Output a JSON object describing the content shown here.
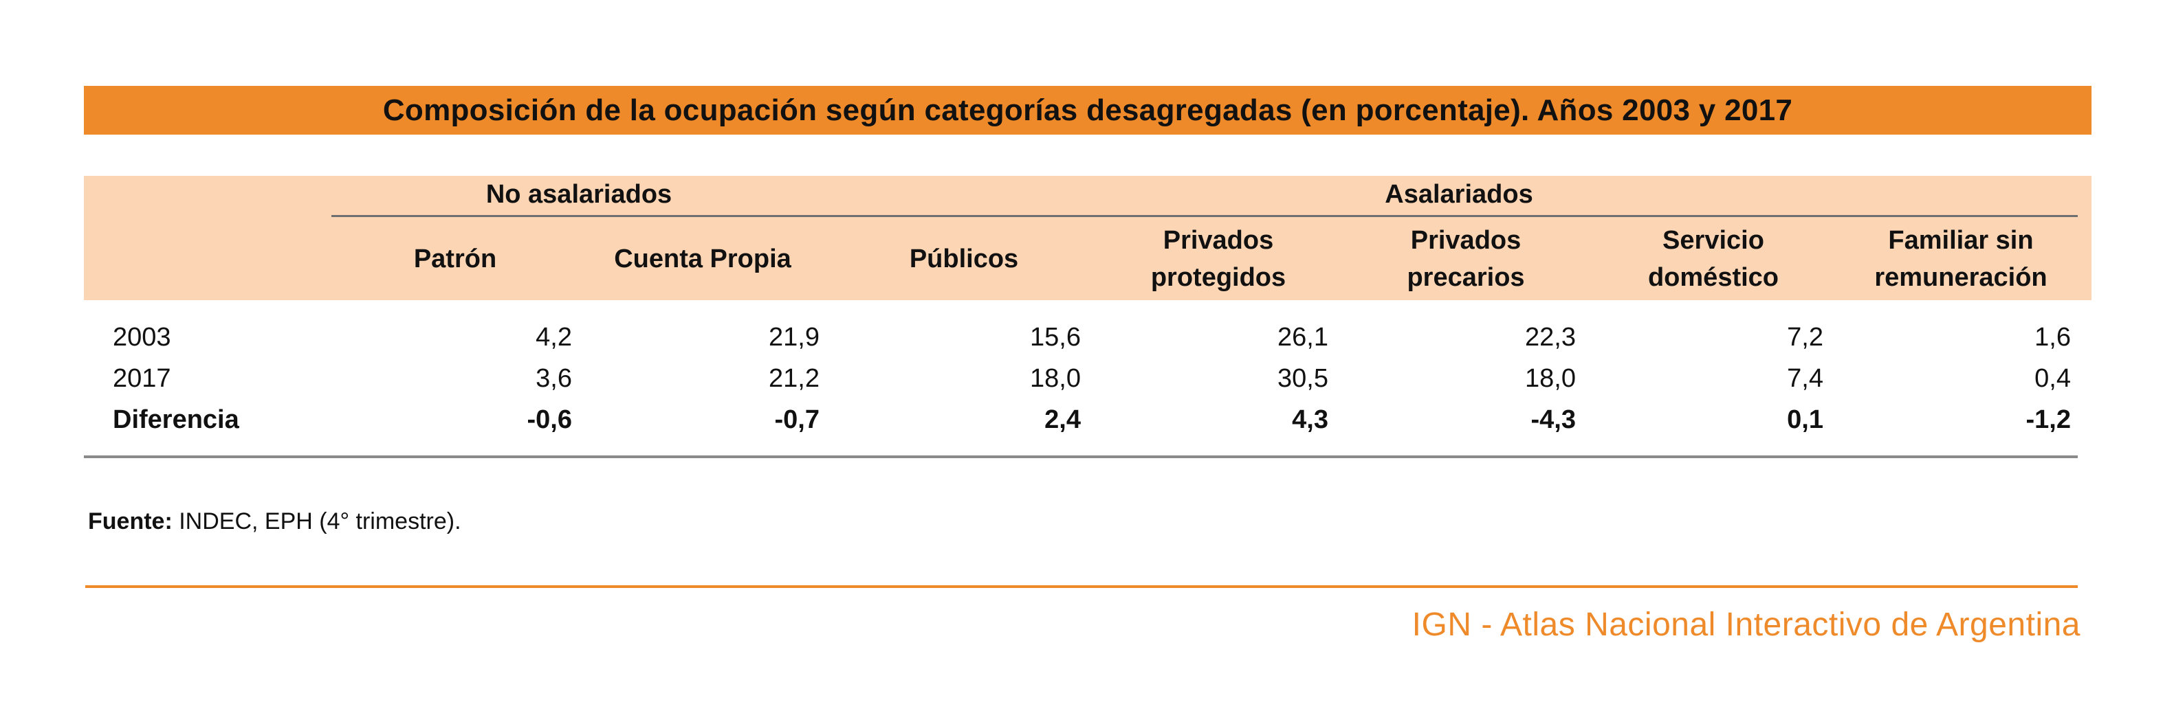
{
  "title": "Composición de la ocupación según categorías desagregadas (en porcentaje). Años 2003 y 2017",
  "groups": {
    "no_asalariados": "No asalariados",
    "asalariados": "Asalariados"
  },
  "columns": [
    "Patrón",
    "Cuenta Propia",
    "Públicos",
    "Privados\nprotegidos",
    "Privados\nprecarios",
    "Servicio\ndoméstico",
    "Familiar sin\nremuneración"
  ],
  "rows": [
    {
      "label": "2003",
      "values": [
        "4,2",
        "21,9",
        "15,6",
        "26,1",
        "22,3",
        "7,2",
        "1,6"
      ]
    },
    {
      "label": "2017",
      "values": [
        "3,6",
        "21,2",
        "18,0",
        "30,5",
        "18,0",
        "7,4",
        "0,4"
      ]
    },
    {
      "label": "Diferencia",
      "values": [
        "-0,6",
        "-0,7",
        "2,4",
        "4,3",
        "-4,3",
        "0,1",
        "-1,2"
      ]
    }
  ],
  "source": {
    "label": "Fuente:",
    "text": " INDEC, EPH (4° trimestre)."
  },
  "footer": "IGN - Atlas Nacional Interactivo de Argentina",
  "colors": {
    "accent": "#ef8a2a",
    "header_band": "#fcd5b4"
  },
  "chart_data": {
    "type": "table",
    "title": "Composición de la ocupación según categorías desagregadas (en porcentaje). Años 2003 y 2017",
    "column_groups": [
      {
        "name": "No asalariados",
        "columns": [
          "Patrón",
          "Cuenta Propia"
        ]
      },
      {
        "name": "Asalariados",
        "columns": [
          "Públicos",
          "Privados protegidos",
          "Privados precarios",
          "Servicio doméstico",
          "Familiar sin remuneración"
        ]
      }
    ],
    "categories": [
      "Patrón",
      "Cuenta Propia",
      "Públicos",
      "Privados protegidos",
      "Privados precarios",
      "Servicio doméstico",
      "Familiar sin remuneración"
    ],
    "series": [
      {
        "name": "2003",
        "values": [
          4.2,
          21.9,
          15.6,
          26.1,
          22.3,
          7.2,
          1.6
        ]
      },
      {
        "name": "2017",
        "values": [
          3.6,
          21.2,
          18.0,
          30.5,
          18.0,
          7.4,
          0.4
        ]
      },
      {
        "name": "Diferencia",
        "values": [
          -0.6,
          -0.7,
          2.4,
          4.3,
          -4.3,
          0.1,
          -1.2
        ]
      }
    ]
  }
}
